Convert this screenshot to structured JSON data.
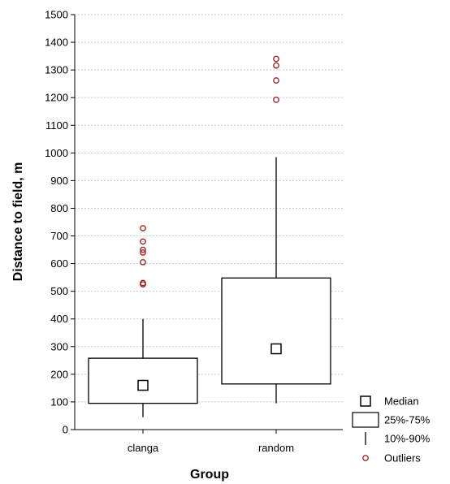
{
  "chart_data": {
    "type": "box",
    "title": "",
    "xlabel": "Group",
    "ylabel": "Distance to field, m",
    "ylim": [
      0,
      1500
    ],
    "yticks": [
      0,
      100,
      200,
      300,
      400,
      500,
      600,
      700,
      800,
      900,
      1000,
      1100,
      1200,
      1300,
      1400,
      1500
    ],
    "grid": true,
    "legend_placement": "bottom-right",
    "categories": [
      "clanga",
      "random"
    ],
    "boxes": [
      {
        "category": "clanga",
        "p10": 45,
        "q1": 95,
        "median": 160,
        "q3": 258,
        "p90": 400,
        "outliers": [
          525,
          530,
          605,
          640,
          650,
          680,
          728
        ]
      },
      {
        "category": "random",
        "p10": 95,
        "q1": 165,
        "median": 292,
        "q3": 548,
        "p90": 985,
        "outliers": [
          1192,
          1262,
          1316,
          1340
        ]
      }
    ],
    "legend": [
      {
        "symbol": "median",
        "label": "Median"
      },
      {
        "symbol": "box",
        "label": "25%-75%"
      },
      {
        "symbol": "whisker",
        "label": "10%-90%"
      },
      {
        "symbol": "outlier",
        "label": "Outliers"
      }
    ],
    "colors": {
      "outlier": "#9b2a2a",
      "grid": "#c8c8c8",
      "axis": "#000000"
    }
  }
}
